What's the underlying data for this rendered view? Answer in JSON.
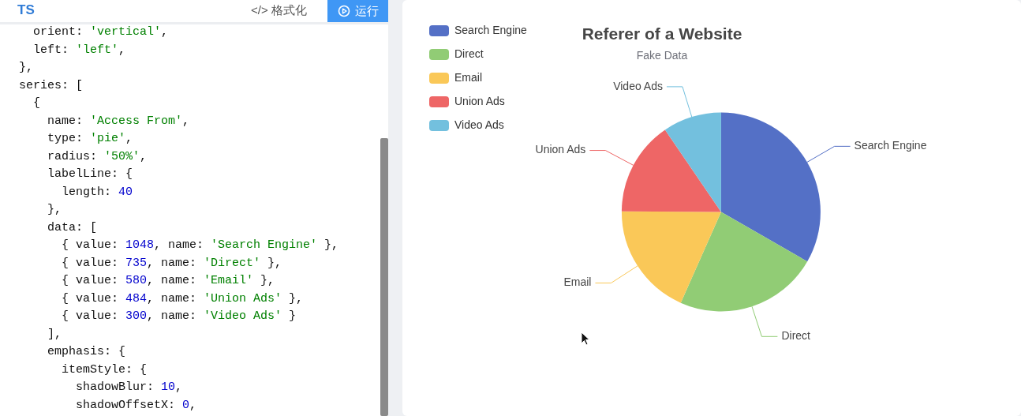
{
  "chart_data": {
    "type": "pie",
    "title": "Referer of a Website",
    "subtitle": "Fake Data",
    "categories": [
      "Search Engine",
      "Direct",
      "Email",
      "Union Ads",
      "Video Ads"
    ],
    "values": [
      33.3,
      23.36,
      18.43,
      15.38,
      9.53
    ],
    "colors": [
      "#5470c6",
      "#91cc75",
      "#fac858",
      "#ee6666",
      "#73c0de"
    ],
    "legend": "top left",
    "annotations": [
      "TS",
      "</> 格式化",
      "运行",
      "  orient: 'vertical',",
      "  left: 'left',",
      "},",
      "series: [",
      "  {",
      "    name: 'Access From',",
      "    type: 'pie',",
      "    radius: '50%',",
      "    labelLine: {",
      "      length: 40",
      "    },",
      "    data: [",
      "      { value: 1048, name: 'Search Engine' },",
      "      { value: 735, name: 'Direct' },",
      "      { value: 580, name: 'Email' },",
      "      { value: 484, name: 'Union Ads' },",
      "      { value: 300, name: 'Video Ads' }",
      "    ],",
      "    emphasis: {",
      "      itemStyle: {",
      "        shadowBlur: 10,",
      "        shadowOffsetX: 0,"
    ]
  }
}
